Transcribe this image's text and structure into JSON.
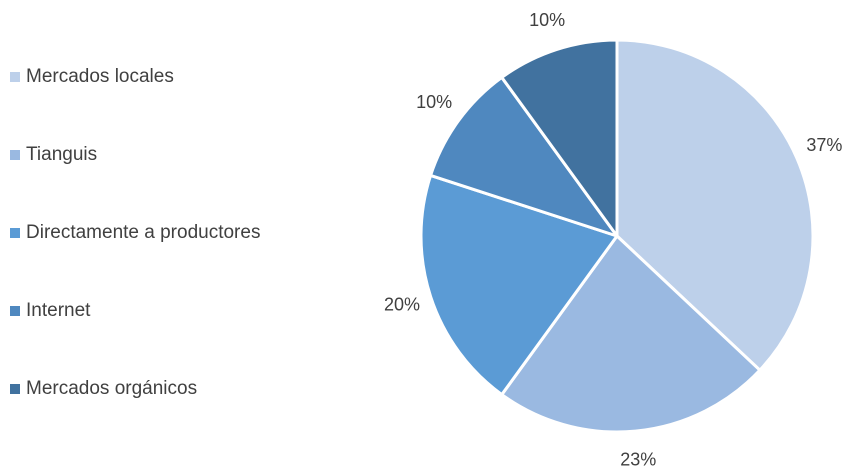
{
  "chart_data": {
    "type": "pie",
    "categories": [
      "Mercados locales",
      "Tianguis",
      "Directamente a productores",
      "Internet",
      "Mercados orgánicos"
    ],
    "values": [
      37,
      23,
      20,
      10,
      10
    ],
    "data_labels": [
      "37%",
      "23%",
      "20%",
      "10%",
      "10%"
    ],
    "colors": [
      "#bdd0ea",
      "#9ab9e1",
      "#5b9bd5",
      "#4f88bf",
      "#41729f"
    ],
    "start_angle_deg": 0,
    "direction": "clockwise",
    "legend_position": "left"
  }
}
